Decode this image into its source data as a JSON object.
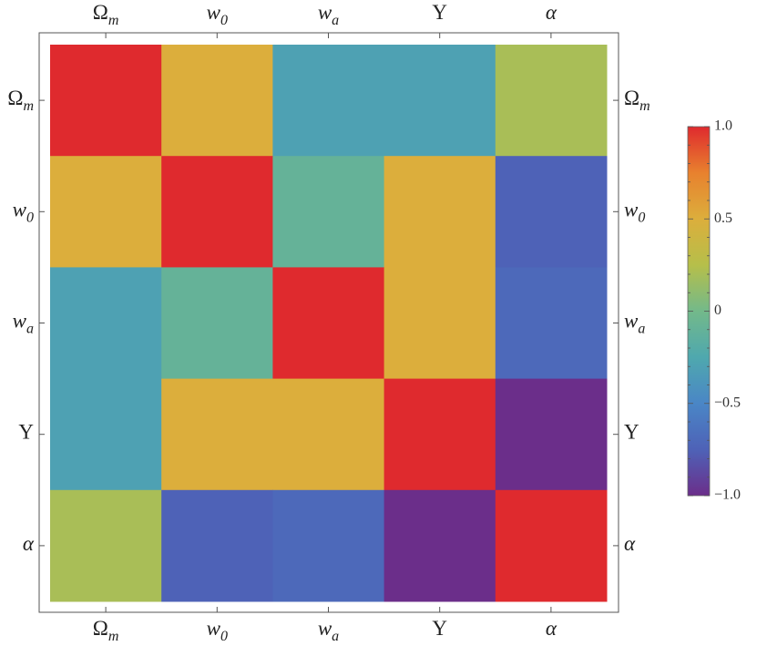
{
  "chart_data": {
    "type": "heatmap",
    "title": "",
    "xlabel": "",
    "ylabel": "",
    "categories": [
      {
        "base": "Ω",
        "sub": "m"
      },
      {
        "base": "w",
        "sub": "0"
      },
      {
        "base": "w",
        "sub": "a"
      },
      {
        "base": "Υ",
        "sub": ""
      },
      {
        "base": "α",
        "sub": ""
      }
    ],
    "matrix": [
      [
        1.0,
        0.5,
        -0.3,
        -0.3,
        0.2
      ],
      [
        0.5,
        1.0,
        -0.1,
        0.5,
        -0.75
      ],
      [
        -0.3,
        -0.1,
        1.0,
        0.5,
        -0.7
      ],
      [
        -0.3,
        0.5,
        0.5,
        1.0,
        -1.0
      ],
      [
        0.2,
        -0.75,
        -0.7,
        -1.0,
        1.0
      ]
    ],
    "colorbar": {
      "range": [
        -1.0,
        1.0
      ],
      "tick_labels": [
        "1.0",
        "0.5",
        "0",
        "−0.5",
        "−1.0"
      ],
      "tick_values": [
        1.0,
        0.5,
        0,
        -0.5,
        -1.0
      ]
    },
    "colormap": [
      {
        "v": -1.0,
        "color": "#6b2e8a"
      },
      {
        "v": -0.75,
        "color": "#4e62b7"
      },
      {
        "v": -0.5,
        "color": "#4a86c6"
      },
      {
        "v": -0.25,
        "color": "#4fa8ae"
      },
      {
        "v": 0.0,
        "color": "#73b98a"
      },
      {
        "v": 0.25,
        "color": "#b6bf4a"
      },
      {
        "v": 0.5,
        "color": "#dcae3c"
      },
      {
        "v": 0.75,
        "color": "#e8812e"
      },
      {
        "v": 1.0,
        "color": "#df2a2e"
      }
    ]
  }
}
